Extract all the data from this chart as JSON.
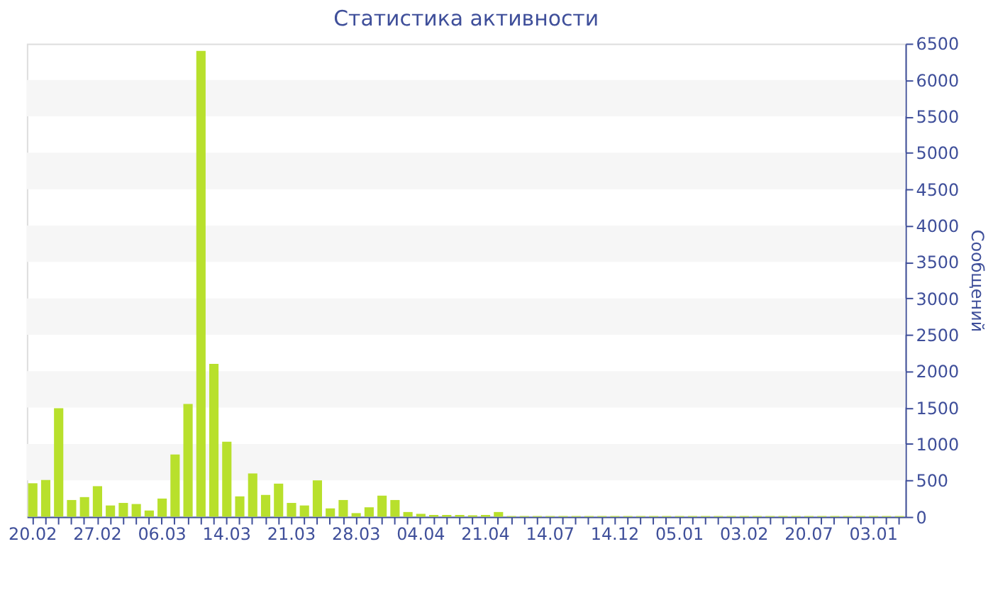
{
  "chart_data": {
    "type": "bar",
    "title": "Статистика активности",
    "ylabel": "Сообщений",
    "categories": [
      "20.02",
      null,
      null,
      null,
      null,
      "27.02",
      null,
      null,
      null,
      null,
      "06.03",
      null,
      null,
      null,
      null,
      "14.03",
      null,
      null,
      null,
      null,
      "21.03",
      null,
      null,
      null,
      null,
      "28.03",
      null,
      null,
      null,
      null,
      "04.04",
      null,
      null,
      null,
      null,
      "21.04",
      null,
      null,
      null,
      null,
      "14.07",
      null,
      null,
      null,
      null,
      "14.12",
      null,
      null,
      null,
      null,
      "05.01",
      null,
      null,
      null,
      null,
      "03.02",
      null,
      null,
      null,
      null,
      "20.07",
      null,
      null,
      null,
      null,
      "03.01",
      null,
      null
    ],
    "values": [
      460,
      505,
      1490,
      230,
      270,
      420,
      155,
      190,
      175,
      85,
      250,
      855,
      1550,
      6400,
      2100,
      1030,
      280,
      595,
      300,
      455,
      190,
      155,
      500,
      115,
      230,
      50,
      130,
      290,
      230,
      65,
      40,
      25,
      25,
      25,
      20,
      25,
      65,
      10,
      10,
      10,
      10,
      10,
      10,
      10,
      10,
      10,
      10,
      10,
      10,
      10,
      10,
      10,
      10,
      10,
      10,
      10,
      10,
      10,
      10,
      10,
      10,
      10,
      10,
      10,
      10,
      10,
      10,
      10
    ],
    "color": "#b8e02c",
    "ylim": [
      0,
      6500
    ],
    "yticks": [
      0,
      500,
      1000,
      1500,
      2000,
      2500,
      3000,
      3500,
      4000,
      4500,
      5000,
      5500,
      6000,
      6500
    ],
    "bands": [
      {
        "axis": "y",
        "from": 500,
        "to": 1000,
        "color": "#f6f6f6"
      },
      {
        "axis": "y",
        "from": 1500,
        "to": 2000,
        "color": "#f6f6f6"
      },
      {
        "axis": "y",
        "from": 2500,
        "to": 3000,
        "color": "#f6f6f6"
      },
      {
        "axis": "y",
        "from": 3500,
        "to": 4000,
        "color": "#f6f6f6"
      },
      {
        "axis": "y",
        "from": 4500,
        "to": 5000,
        "color": "#f6f6f6"
      },
      {
        "axis": "y",
        "from": 5500,
        "to": 6000,
        "color": "#f6f6f6"
      }
    ]
  }
}
